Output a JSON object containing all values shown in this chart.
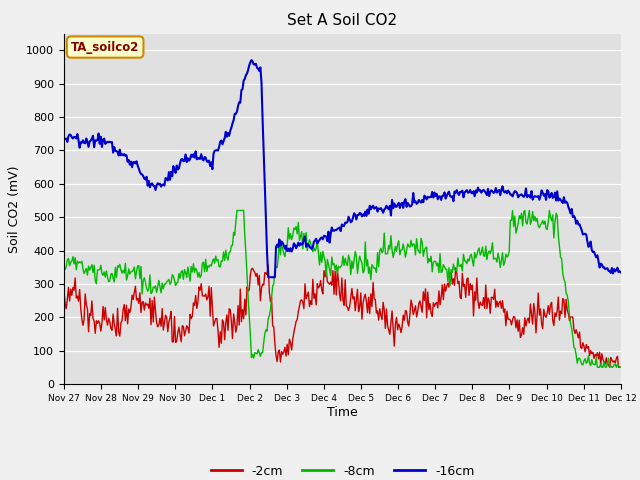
{
  "title": "Set A Soil CO2",
  "ylabel": "Soil CO2 (mV)",
  "xlabel": "Time",
  "legend_label": "TA_soilco2",
  "series_labels": [
    "-2cm",
    "-8cm",
    "-16cm"
  ],
  "series_colors": [
    "#cc0000",
    "#00bb00",
    "#0000cc"
  ],
  "ylim": [
    0,
    1050
  ],
  "xlim": [
    0,
    15
  ],
  "fig_bg": "#f0f0f0",
  "ax_bg": "#e0e0e0",
  "tick_labels": [
    "Nov 27",
    "Nov 28",
    "Nov 29",
    "Nov 30",
    "Dec 1",
    "Dec 2",
    "Dec 3",
    "Dec 4",
    "Dec 5",
    "Dec 6",
    "Dec 7",
    "Dec 8",
    "Dec 9",
    "Dec 10",
    "Dec 11",
    "Dec 12"
  ],
  "yticks": [
    0,
    100,
    200,
    300,
    400,
    500,
    600,
    700,
    800,
    900,
    1000
  ],
  "n_points": 500,
  "lw_red": 1.0,
  "lw_green": 1.0,
  "lw_blue": 1.5
}
